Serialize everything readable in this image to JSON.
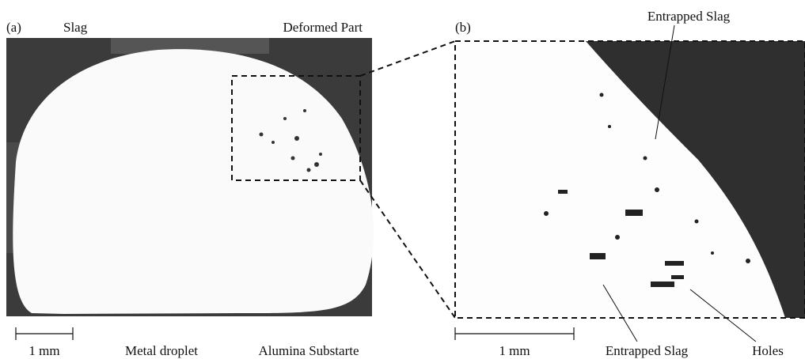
{
  "panel_a": {
    "label": "(a)",
    "slag": "Slag",
    "deformed_part": "Deformed Part",
    "scale_bar": "1 mm",
    "metal_droplet": "Metal droplet",
    "substrate": "Alumina Substarte"
  },
  "panel_b": {
    "label": "(b)",
    "entrapped_slag_top": "Entrapped Slag",
    "scale_bar": "1 mm",
    "entrapped_slag_bottom": "Entrapped Slag",
    "holes": "Holes"
  }
}
